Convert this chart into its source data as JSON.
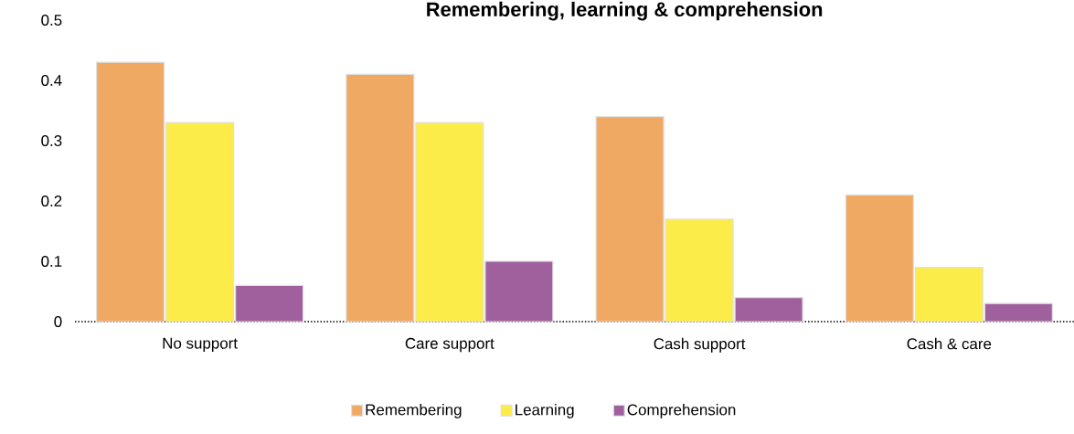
{
  "chart_data": {
    "type": "bar",
    "title": "Remembering, learning & comprehension",
    "categories": [
      "No support",
      "Care support",
      "Cash support",
      "Cash & care"
    ],
    "series": [
      {
        "name": "Remembering",
        "color": "#f0a963",
        "values": [
          0.43,
          0.41,
          0.34,
          0.21
        ]
      },
      {
        "name": "Learning",
        "color": "#fcec4a",
        "values": [
          0.33,
          0.33,
          0.17,
          0.09
        ]
      },
      {
        "name": "Comprehension",
        "color": "#a0609e",
        "values": [
          0.06,
          0.1,
          0.04,
          0.03
        ]
      }
    ],
    "ylim": [
      0,
      0.5
    ],
    "yticks": [
      0,
      0.1,
      0.2,
      0.3,
      0.4,
      0.5
    ],
    "grid": false,
    "legend": "bottom"
  }
}
